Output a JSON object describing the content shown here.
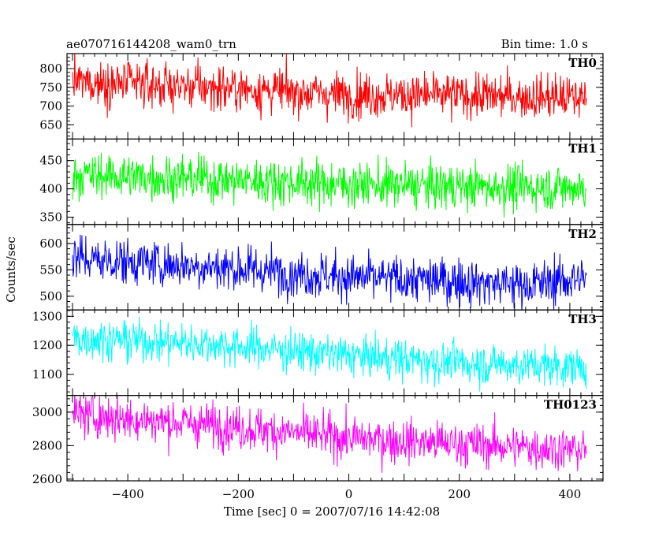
{
  "header": {
    "title": "ae070716144208_wam0_trn",
    "bin_time": "Bin time: 1.0 s"
  },
  "chart_data": {
    "type": "line",
    "xlabel": "Time [sec] 0 = 2007/07/16 14:42:08",
    "ylabel": "Counts/sec",
    "xlim": [
      -510,
      460
    ],
    "x_range": [
      -500,
      430
    ],
    "bin": 1.0,
    "xticks": [
      -400,
      -200,
      0,
      200,
      400
    ],
    "grid": false,
    "panels": [
      {
        "name": "TH0",
        "color": "#ff0000",
        "ylim": [
          612,
          840
        ],
        "yticks": [
          650,
          700,
          750,
          800
        ],
        "trend": [
          [
            -500,
            765
          ],
          [
            -250,
            750
          ],
          [
            0,
            730
          ],
          [
            200,
            728
          ],
          [
            430,
            722
          ]
        ],
        "noise_sigma": 30
      },
      {
        "name": "TH1",
        "color": "#00ff00",
        "ylim": [
          337,
          488
        ],
        "yticks": [
          350,
          400,
          450
        ],
        "trend": [
          [
            -500,
            425
          ],
          [
            -250,
            417
          ],
          [
            0,
            408
          ],
          [
            200,
            404
          ],
          [
            430,
            402
          ]
        ],
        "noise_sigma": 20
      },
      {
        "name": "TH2",
        "color": "#0000ff",
        "ylim": [
          474,
          636
        ],
        "yticks": [
          500,
          550,
          600
        ],
        "trend": [
          [
            -500,
            572
          ],
          [
            -250,
            556
          ],
          [
            0,
            536
          ],
          [
            200,
            528
          ],
          [
            330,
            522
          ],
          [
            430,
            535
          ]
        ],
        "noise_sigma": 22
      },
      {
        "name": "TH3",
        "color": "#00ffff",
        "ylim": [
          1028,
          1322
        ],
        "yticks": [
          1100,
          1200,
          1300
        ],
        "trend": [
          [
            -500,
            1225
          ],
          [
            -250,
            1205
          ],
          [
            0,
            1165
          ],
          [
            200,
            1140
          ],
          [
            430,
            1125
          ]
        ],
        "noise_sigma": 35
      },
      {
        "name": "TH0123",
        "color": "#ff00ff",
        "ylim": [
          2590,
          3100
        ],
        "yticks": [
          2600,
          2800,
          3000
        ],
        "trend": [
          [
            -500,
            2985
          ],
          [
            -250,
            2925
          ],
          [
            0,
            2845
          ],
          [
            200,
            2810
          ],
          [
            430,
            2775
          ]
        ],
        "noise_sigma": 65
      }
    ]
  }
}
